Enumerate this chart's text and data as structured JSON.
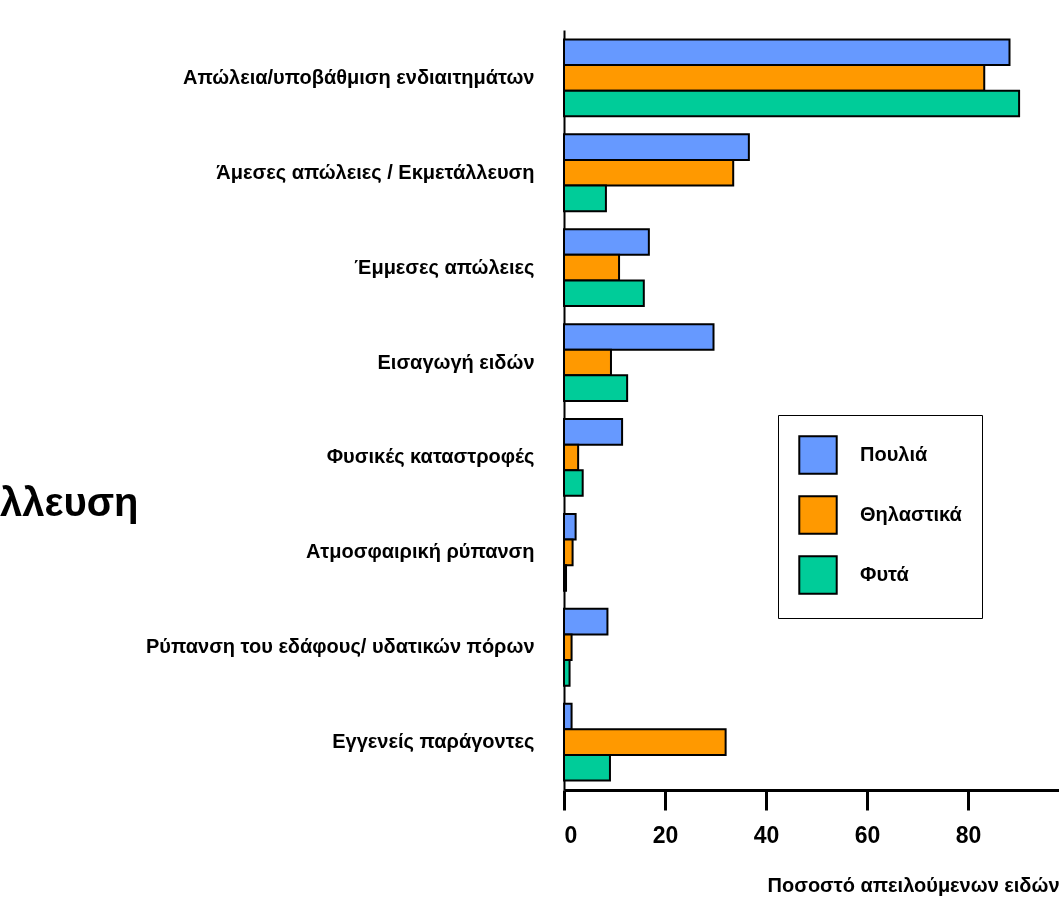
{
  "chart_data": {
    "type": "bar",
    "orientation": "horizontal",
    "xlabel": "Ποσοστό απειλούμενων ειδών",
    "categories": [
      "Απώλεια/υποβάθμιση ενδιαιτημάτων",
      "Άμεσες απώλειες / Εκμετάλλευση",
      "Έμμεσες απώλειες",
      "Εισαγωγή ειδών",
      "Φυσικές καταστροφές",
      "Ατμοσφαιρική ρύπανση",
      "Ρύπανση του εδάφους/ υδατικών πόρων",
      "Εγγενείς παράγοντες"
    ],
    "series": [
      {
        "name": "Πουλιά",
        "color": "#6699ff",
        "values": [
          88.2,
          36.6,
          16.8,
          29.6,
          11.5,
          2.3,
          8.6,
          1.5
        ]
      },
      {
        "name": "Θηλαστικά",
        "color": "#ff9900",
        "values": [
          83.2,
          33.5,
          10.9,
          9.3,
          2.8,
          1.7,
          1.5,
          32
        ]
      },
      {
        "name": "Φυτά",
        "color": "#00cc99",
        "values": [
          90.1,
          8.3,
          15.8,
          12.5,
          3.7,
          0.4,
          1.1,
          9.1
        ]
      }
    ],
    "xlim": [
      0,
      98
    ],
    "xticks": [
      0,
      20,
      40,
      60,
      80
    ],
    "legend": "right",
    "annotations": [
      "λλευση"
    ]
  }
}
